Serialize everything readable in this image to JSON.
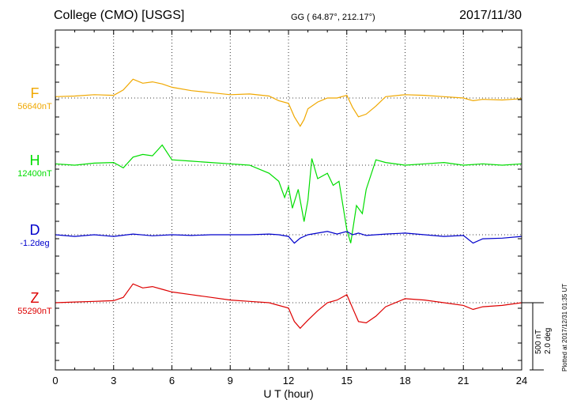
{
  "header": {
    "title": "College (CMO)  [USGS]",
    "coords": "GG ( 64.87°, 212.17°)",
    "date": "2017/11/30"
  },
  "footer": {
    "xlabel": "U T (hour)",
    "plotted": "Plotted at 2017/12/31 01:35 UT"
  },
  "scale": {
    "nt": "500 nT",
    "deg": "2.0 deg"
  },
  "components": [
    {
      "letter": "F",
      "base": "56640nT",
      "color": "#f0a800"
    },
    {
      "letter": "H",
      "base": "12400nT",
      "color": "#00dd00"
    },
    {
      "letter": "D",
      "base": "-1.2deg",
      "color": "#0000cc"
    },
    {
      "letter": "Z",
      "base": "55290nT",
      "color": "#dd0000"
    }
  ],
  "chart_data": {
    "type": "line",
    "title": "College (CMO)  [USGS]",
    "xlabel": "U T (hour)",
    "xlim": [
      0,
      24
    ],
    "xticks": [
      0,
      3,
      6,
      9,
      12,
      15,
      18,
      21,
      24
    ],
    "grid": true,
    "series": [
      {
        "name": "F",
        "units": "nT",
        "baseline": 56640,
        "x": [
          0,
          1,
          2,
          3,
          3.5,
          4,
          4.5,
          5,
          5.5,
          6,
          7,
          8,
          9,
          10,
          11,
          11.5,
          12,
          12.3,
          12.6,
          12.8,
          13,
          13.5,
          14,
          14.5,
          15,
          15.3,
          15.6,
          16,
          16.5,
          17,
          18,
          19,
          20,
          21,
          21.5,
          22,
          23,
          24
        ],
        "values": [
          10,
          15,
          25,
          20,
          60,
          140,
          110,
          120,
          105,
          80,
          55,
          40,
          25,
          30,
          15,
          -20,
          -40,
          -140,
          -210,
          -160,
          -80,
          -30,
          0,
          0,
          20,
          -70,
          -140,
          -120,
          -60,
          10,
          25,
          20,
          10,
          0,
          -20,
          -10,
          -15,
          -5
        ]
      },
      {
        "name": "H",
        "units": "nT",
        "baseline": 12400,
        "x": [
          0,
          1,
          2,
          3,
          3.5,
          4,
          4.5,
          5,
          5.5,
          6,
          7,
          8,
          9,
          10,
          11,
          11.5,
          11.8,
          12,
          12.2,
          12.5,
          12.8,
          13,
          13.2,
          13.5,
          14,
          14.3,
          14.6,
          15,
          15.2,
          15.5,
          15.8,
          16,
          16.5,
          17,
          18,
          19,
          20,
          21,
          22,
          23,
          24
        ],
        "values": [
          10,
          0,
          15,
          20,
          -20,
          60,
          80,
          70,
          150,
          40,
          30,
          20,
          10,
          0,
          -60,
          -120,
          -240,
          -160,
          -320,
          -180,
          -420,
          -260,
          50,
          -100,
          -60,
          -150,
          -120,
          -480,
          -580,
          -300,
          -360,
          -180,
          40,
          20,
          0,
          10,
          20,
          0,
          10,
          0,
          10
        ]
      },
      {
        "name": "D",
        "units": "deg",
        "baseline": -1.2,
        "x": [
          0,
          1,
          2,
          3,
          4,
          5,
          6,
          7,
          8,
          9,
          10,
          11,
          11.5,
          12,
          12.3,
          12.6,
          13,
          13.5,
          14,
          14.5,
          15,
          15.3,
          15.6,
          16,
          16.5,
          17,
          18,
          19,
          20,
          21,
          21.5,
          22,
          23,
          24
        ],
        "values": [
          0,
          -0.05,
          0.0,
          -0.05,
          0.02,
          -0.03,
          0.0,
          -0.02,
          0.0,
          0.0,
          0.0,
          0.02,
          0.0,
          -0.05,
          -0.25,
          -0.1,
          0.0,
          0.05,
          0.1,
          0.02,
          0.1,
          0.0,
          0.05,
          -0.02,
          0.0,
          0.02,
          0.05,
          0.0,
          -0.05,
          -0.02,
          -0.25,
          -0.12,
          -0.1,
          -0.05
        ]
      },
      {
        "name": "Z",
        "units": "nT",
        "baseline": 55290,
        "x": [
          0,
          1,
          2,
          3,
          3.5,
          4,
          4.5,
          5,
          5.5,
          6,
          7,
          8,
          9,
          10,
          11,
          12,
          12.3,
          12.6,
          13,
          13.5,
          14,
          14.5,
          15,
          15.3,
          15.6,
          16,
          16.5,
          17,
          18,
          19,
          20,
          21,
          21.5,
          22,
          23,
          24
        ],
        "values": [
          0,
          5,
          10,
          15,
          40,
          140,
          110,
          120,
          100,
          80,
          60,
          40,
          20,
          10,
          0,
          -40,
          -140,
          -190,
          -130,
          -60,
          0,
          20,
          60,
          -40,
          -140,
          -150,
          -100,
          -30,
          30,
          20,
          0,
          -20,
          -50,
          -30,
          -20,
          0
        ]
      }
    ]
  }
}
